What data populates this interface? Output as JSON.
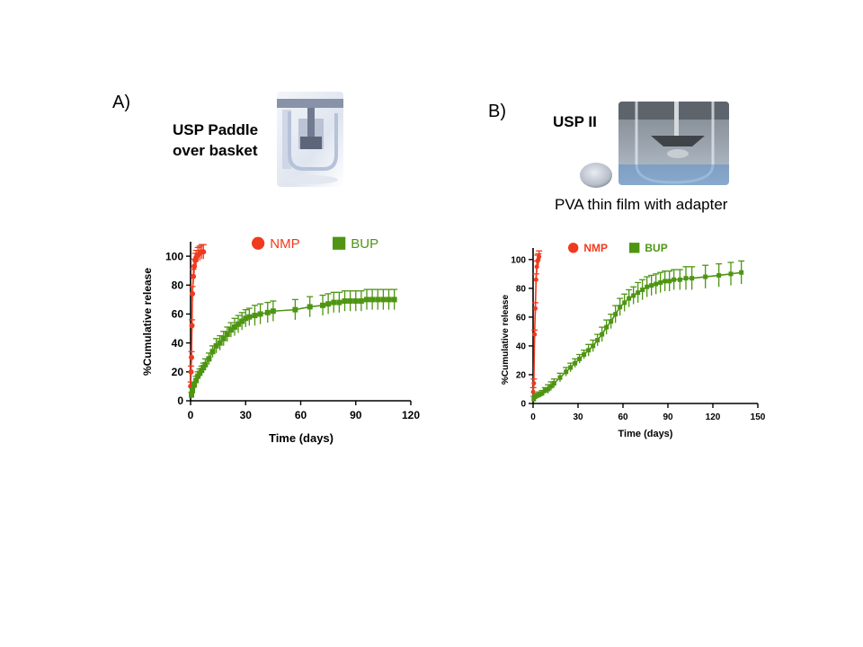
{
  "panels": [
    {
      "label": "A)",
      "setup_title_lines": [
        "USP Paddle",
        "over basket"
      ],
      "photo": "usp-paddle-over-basket-photo"
    },
    {
      "label": "B)",
      "setup_title_lines": [
        "USP II"
      ],
      "caption": "PVA thin film with adapter",
      "photos": [
        "pva-film-disc-photo",
        "usp-ii-vessel-photo"
      ]
    }
  ],
  "colors": {
    "NMP": "#f03a1e",
    "BUP": "#4e9512",
    "axis": "#000000"
  },
  "chart_data": [
    {
      "type": "line",
      "xlabel": "Time (days)",
      "ylabel": "%Cumulative release",
      "xlim": [
        0,
        120
      ],
      "ylim": [
        0,
        110
      ],
      "xticks": [
        0,
        30,
        60,
        90,
        120
      ],
      "yticks": [
        0,
        20,
        40,
        60,
        80,
        100
      ],
      "legend_position": "top",
      "series": [
        {
          "name": "NMP",
          "marker": "circle",
          "x": [
            0.1,
            0.25,
            0.5,
            0.75,
            1,
            1.5,
            2,
            2.5,
            3,
            4,
            5,
            6,
            7
          ],
          "y": [
            10,
            20,
            30,
            52,
            74,
            86,
            93,
            97,
            99,
            101,
            102,
            103,
            103
          ],
          "err": [
            3,
            4,
            4,
            4,
            5,
            5,
            5,
            5,
            5,
            5,
            5,
            5,
            5
          ]
        },
        {
          "name": "BUP",
          "marker": "square",
          "x": [
            0.5,
            1,
            2,
            3,
            4,
            5,
            6,
            7,
            8,
            10,
            12,
            14,
            16,
            18,
            20,
            22,
            24,
            26,
            28,
            30,
            32,
            35,
            38,
            42,
            45,
            57,
            65,
            72,
            75,
            78,
            81,
            84,
            87,
            90,
            93,
            96,
            99,
            102,
            105,
            108,
            111
          ],
          "y": [
            4,
            7,
            11,
            14,
            17,
            19,
            21,
            23,
            25,
            29,
            34,
            38,
            40,
            43,
            46,
            49,
            51,
            53,
            55,
            57,
            58,
            59,
            60,
            61,
            62,
            63,
            65,
            66,
            67,
            68,
            68,
            69,
            69,
            69,
            69,
            70,
            70,
            70,
            70,
            70,
            70
          ],
          "err": [
            2,
            2,
            2,
            3,
            3,
            3,
            3,
            3,
            4,
            4,
            4,
            5,
            5,
            5,
            5,
            5,
            6,
            6,
            6,
            6,
            6,
            7,
            7,
            7,
            7,
            7,
            7,
            7,
            7,
            7,
            7,
            7,
            7,
            7,
            7,
            7,
            7,
            7,
            7,
            7,
            7
          ]
        }
      ]
    },
    {
      "type": "line",
      "xlabel": "Time (days)",
      "ylabel": "%Cumulative release",
      "xlim": [
        0,
        150
      ],
      "ylim": [
        0,
        108
      ],
      "xticks": [
        0,
        30,
        60,
        90,
        120,
        150
      ],
      "yticks": [
        0,
        20,
        40,
        60,
        80,
        100
      ],
      "legend_position": "top",
      "series": [
        {
          "name": "NMP",
          "marker": "circle",
          "x": [
            0.1,
            0.5,
            1,
            1.5,
            2,
            2.5,
            3,
            3.5,
            4
          ],
          "y": [
            8,
            14,
            48,
            66,
            86,
            95,
            99,
            100,
            102
          ],
          "err": [
            3,
            3,
            3,
            4,
            4,
            4,
            4,
            4,
            4
          ]
        },
        {
          "name": "BUP",
          "marker": "square",
          "x": [
            0.5,
            2,
            4,
            6,
            8,
            10,
            12,
            14,
            18,
            22,
            25,
            28,
            31,
            34,
            37,
            40,
            43,
            46,
            49,
            52,
            55,
            58,
            61,
            64,
            67,
            70,
            73,
            76,
            79,
            82,
            85,
            88,
            91,
            94,
            98,
            102,
            106,
            115,
            124,
            132,
            139
          ],
          "y": [
            3,
            5,
            6,
            7,
            9,
            10,
            12,
            14,
            18,
            22,
            25,
            28,
            31,
            34,
            37,
            40,
            44,
            48,
            53,
            57,
            62,
            67,
            70,
            73,
            75,
            77,
            79,
            81,
            82,
            83,
            84,
            85,
            85,
            86,
            86,
            87,
            87,
            88,
            89,
            90,
            91
          ],
          "err": [
            2,
            2,
            2,
            2,
            2,
            3,
            3,
            3,
            3,
            3,
            3,
            3,
            3,
            3,
            4,
            4,
            4,
            5,
            5,
            5,
            6,
            6,
            6,
            6,
            6,
            7,
            7,
            7,
            7,
            7,
            7,
            7,
            7,
            7,
            7,
            8,
            8,
            8,
            8,
            8,
            8
          ]
        }
      ]
    }
  ]
}
